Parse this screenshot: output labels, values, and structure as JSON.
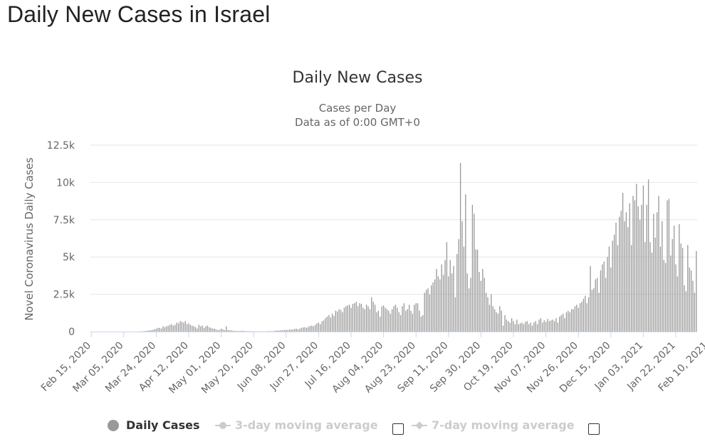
{
  "page": {
    "title": "Daily New Cases in Israel"
  },
  "legend": {
    "items": [
      {
        "label": "Daily Cases",
        "active": true
      },
      {
        "label": "3-day moving average",
        "active": false
      },
      {
        "label": "7-day moving average",
        "active": false
      }
    ]
  },
  "colors": {
    "bar": "#999999",
    "grid": "#e6e6e6",
    "axis_text": "#666666",
    "inactive": "#cccccc"
  },
  "chart_data": {
    "type": "bar",
    "title": "Daily New Cases",
    "subtitle_lines": [
      "Cases per Day",
      "Data as of 0:00 GMT+0"
    ],
    "ylabel": "Novel Coronavirus Daily Cases",
    "xlabel": "",
    "ylim": [
      0,
      12500
    ],
    "yticks": [
      0,
      2500,
      5000,
      7500,
      10000,
      12500
    ],
    "ytick_labels": [
      "0",
      "2.5k",
      "5k",
      "7.5k",
      "10k",
      "12.5k"
    ],
    "grid": true,
    "start_date": "2020-02-15",
    "xtick_labels": [
      "Feb 15, 2020",
      "Mar 05, 2020",
      "Mar 24, 2020",
      "Apr 12, 2020",
      "May 01, 2020",
      "May 20, 2020",
      "Jun 08, 2020",
      "Jun 27, 2020",
      "Jul 16, 2020",
      "Aug 04, 2020",
      "Aug 23, 2020",
      "Sep 11, 2020",
      "Sep 30, 2020",
      "Oct 19, 2020",
      "Nov 07, 2020",
      "Nov 26, 2020",
      "Dec 15, 2020",
      "Jan 03, 2021",
      "Jan 22, 2021",
      "Feb 10, 2021"
    ],
    "xtick_day_step": 19,
    "series": [
      {
        "name": "Daily Cases",
        "values": [
          0,
          0,
          0,
          0,
          0,
          0,
          0,
          0,
          0,
          0,
          0,
          0,
          0,
          0,
          0,
          0,
          0,
          0,
          0,
          0,
          0,
          0,
          0,
          0,
          0,
          0,
          0,
          0,
          5,
          10,
          20,
          30,
          40,
          60,
          80,
          100,
          120,
          150,
          200,
          250,
          250,
          200,
          350,
          300,
          350,
          400,
          450,
          500,
          400,
          450,
          600,
          550,
          700,
          650,
          600,
          700,
          500,
          550,
          450,
          400,
          350,
          300,
          200,
          450,
          350,
          400,
          250,
          350,
          400,
          300,
          250,
          200,
          200,
          150,
          100,
          120,
          200,
          150,
          100,
          350,
          100,
          100,
          80,
          60,
          50,
          40,
          30,
          50,
          40,
          60,
          20,
          30,
          20,
          20,
          20,
          15,
          10,
          10,
          15,
          10,
          10,
          10,
          10,
          20,
          30,
          30,
          20,
          40,
          60,
          80,
          60,
          100,
          90,
          110,
          120,
          100,
          140,
          130,
          150,
          180,
          200,
          150,
          200,
          250,
          280,
          300,
          250,
          320,
          380,
          400,
          350,
          450,
          550,
          600,
          500,
          700,
          750,
          900,
          1000,
          1100,
          950,
          1200,
          1050,
          1400,
          1350,
          1500,
          1450,
          1300,
          1600,
          1700,
          1750,
          1800,
          1600,
          1850,
          1900,
          2000,
          1700,
          1900,
          1850,
          1600,
          1500,
          1800,
          1700,
          1500,
          2300,
          2000,
          1800,
          1300,
          1400,
          1000,
          1700,
          1750,
          1600,
          1500,
          1400,
          1200,
          1500,
          1700,
          1800,
          1600,
          1300,
          1100,
          1700,
          1900,
          1400,
          1500,
          1800,
          1400,
          1200,
          1800,
          1900,
          1900,
          1400,
          1000,
          1100,
          2600,
          2800,
          2900,
          2500,
          3100,
          3300,
          3500,
          4200,
          3700,
          3500,
          4500,
          3800,
          4800,
          6000,
          3700,
          4800,
          3900,
          4400,
          2300,
          5200,
          6200,
          11300,
          7400,
          5700,
          9200,
          3900,
          2900,
          3600,
          8500,
          7900,
          5500,
          5500,
          4000,
          3400,
          4200,
          3600,
          2600,
          2300,
          1800,
          2500,
          1700,
          1500,
          1300,
          1200,
          1700,
          1400,
          400,
          1100,
          800,
          700,
          600,
          900,
          700,
          500,
          800,
          500,
          550,
          600,
          500,
          650,
          700,
          500,
          600,
          400,
          600,
          700,
          500,
          800,
          900,
          600,
          750,
          650,
          850,
          700,
          750,
          800,
          700,
          900,
          600,
          1000,
          1100,
          1200,
          900,
          1300,
          1400,
          1300,
          1500,
          1500,
          1700,
          1800,
          1600,
          1900,
          2000,
          2200,
          2400,
          1900,
          2300,
          4400,
          2800,
          2900,
          3500,
          3600,
          2600,
          4100,
          4500,
          4700,
          3600,
          5000,
          5700,
          4300,
          6100,
          6500,
          7300,
          5800,
          7700,
          8100,
          9300,
          7400,
          8000,
          7000,
          8600,
          5800,
          9100,
          8800,
          9900,
          8400,
          7500,
          8500,
          9800,
          6000,
          8500,
          10200,
          6000,
          5300,
          7900,
          6300,
          8000,
          9100,
          5700,
          7400,
          4800,
          4600,
          8800,
          8900,
          5100,
          6200,
          7100,
          4500,
          3700,
          7200,
          5900,
          5600,
          3100,
          2700,
          5800,
          4300,
          4100,
          3400,
          2600,
          5400
        ]
      }
    ]
  }
}
